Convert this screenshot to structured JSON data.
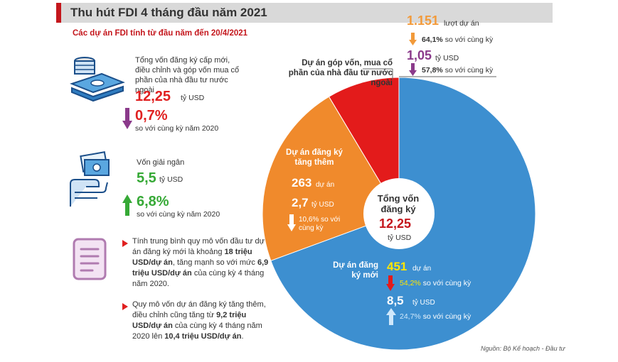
{
  "header": {
    "title": "Thu hút FDI 4 tháng đầu năm 2021",
    "subtitle": "Các dự án FDI tính từ đầu năm đến 20/4/2021"
  },
  "colors": {
    "accent_red": "#c4161c",
    "new_projects": "#3d8fd0",
    "additional": "#f08a2c",
    "capital_contribution": "#e31b1b",
    "purple": "#8b3a8b",
    "orange_text": "#f29a3a",
    "green": "#36a936"
  },
  "left": {
    "total": {
      "icon": "money-stack-icon",
      "desc": "Tổng vốn đăng ký cấp mới, điều chỉnh và góp vốn mua cổ phần của nhà đầu tư nước ngoài",
      "value": "12,25",
      "unit": "tỷ USD",
      "change_icon": "arrow-down-icon",
      "change": "0,7%",
      "change_text": "so với cùng kỳ năm 2020"
    },
    "disbursed": {
      "icon": "hand-money-icon",
      "desc": "Vốn giải ngân",
      "value": "5,5",
      "unit": "tỷ USD",
      "change_icon": "arrow-up-icon",
      "change": "6,8%",
      "change_text": "so với cùng kỳ năm 2020"
    },
    "note1": {
      "icon": "document-icon",
      "p1": "Tính trung bình quy mô vốn đầu tư dự án đăng ký mới là khoảng ",
      "b1": "18 triệu USD/dự án",
      "p2": ", tăng mạnh so với mức ",
      "b2": "6,9 triệu USD/dự án",
      "p3": " của cùng kỳ 4 tháng năm 2020."
    },
    "note2": {
      "p1": "Quy mô vốn dự án đăng ký tăng thêm, điều chỉnh cũng tăng từ ",
      "b1": "9,2 triệu USD/dự án",
      "p2": " của cùng kỳ 4 tháng năm 2020 lên ",
      "b2": "10,4 triệu USD/dự án",
      "p3": "."
    }
  },
  "center": {
    "label": "Tổng vốn đăng ký",
    "value": "12,25",
    "unit": "tỷ USD"
  },
  "segments": {
    "new": {
      "label": "Dự án đăng ký mới",
      "projects": "451",
      "projects_unit": "dự án",
      "projects_change": "54,2%",
      "projects_change_text": "so với cùng kỳ",
      "capital": "8,5",
      "capital_unit": "tỷ USD",
      "capital_change": "24,7%",
      "capital_change_text": "so với cùng kỳ"
    },
    "additional": {
      "label": "Dự án đăng ký tăng thêm",
      "projects": "263",
      "projects_unit": "dự án",
      "capital": "2,7",
      "capital_unit": "tỷ USD",
      "capital_change": "10,6% so với cùng kỳ"
    },
    "contribution": {
      "label": "Dự án góp vốn, mua cổ phần của nhà đầu tư nước ngoài",
      "turns": "1.151",
      "turns_unit": "lượt dự án",
      "turns_change": "64,1%",
      "turns_change_text": "so với cùng kỳ",
      "capital": "1,05",
      "capital_unit": "tỷ USD",
      "capital_change": "57,8%",
      "capital_change_text": "so với cùng kỳ"
    }
  },
  "chart_data": {
    "type": "pie",
    "title": "Tổng vốn đăng ký 12,25 tỷ USD",
    "unit": "tỷ USD",
    "categories": [
      "Dự án đăng ký mới",
      "Dự án đăng ký tăng thêm",
      "Dự án góp vốn, mua cổ phần của nhà đầu tư nước ngoài"
    ],
    "values": [
      8.5,
      2.7,
      1.05
    ],
    "total": 12.25,
    "donut": true
  },
  "source": "Nguồn: Bộ Kế hoạch - Đầu tư"
}
